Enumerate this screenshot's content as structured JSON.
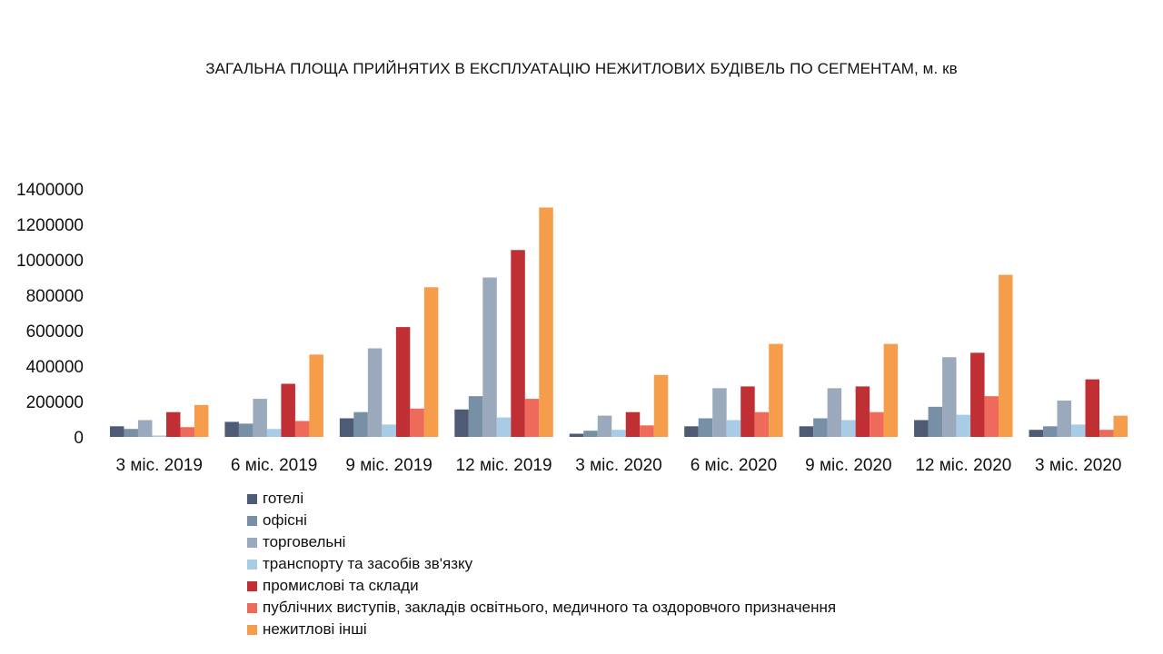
{
  "chart_data": {
    "type": "bar",
    "title": "ЗАГАЛЬНА ПЛОЩА ПРИЙНЯТИХ В ЕКСПЛУАТАЦІЮ НЕЖИТЛОВИХ БУДІВЕЛЬ ПО СЕГМЕНТАМ, м. кв",
    "categories": [
      "3 міс. 2019",
      "6 міс. 2019",
      "9 міс. 2019",
      "12 міс. 2019",
      "3 міс. 2020",
      "6 міс. 2020",
      "9 міс. 2020",
      "12 міс. 2020",
      "3 міс. 2020"
    ],
    "ylim": [
      0,
      1400000
    ],
    "yticks": [
      0,
      200000,
      400000,
      600000,
      800000,
      1000000,
      1200000,
      1400000
    ],
    "grid": false,
    "legend_position": "bottom",
    "series": [
      {
        "name": "готелі",
        "color": "#4d5b74",
        "values": [
          60000,
          85000,
          105000,
          155000,
          18000,
          60000,
          60000,
          95000,
          40000
        ]
      },
      {
        "name": "офісні",
        "color": "#7790a6",
        "values": [
          45000,
          75000,
          140000,
          230000,
          35000,
          105000,
          105000,
          170000,
          60000
        ]
      },
      {
        "name": "торговельні",
        "color": "#9ba9bd",
        "values": [
          95000,
          215000,
          500000,
          900000,
          120000,
          275000,
          275000,
          450000,
          205000
        ]
      },
      {
        "name": "транспорту та засобів зв'язку",
        "color": "#a9cce6",
        "values": [
          8000,
          45000,
          70000,
          110000,
          40000,
          95000,
          95000,
          125000,
          70000
        ]
      },
      {
        "name": "промислові та склади",
        "color": "#bf2f34",
        "values": [
          140000,
          300000,
          620000,
          1055000,
          140000,
          285000,
          285000,
          475000,
          325000
        ]
      },
      {
        "name": "публічних виступів, закладів освітнього, медичного та оздоровчого призначення",
        "color": "#ee6b5c",
        "values": [
          55000,
          90000,
          160000,
          215000,
          65000,
          140000,
          140000,
          230000,
          40000
        ]
      },
      {
        "name": "нежитлові інші",
        "color": "#f59d4b",
        "values": [
          180000,
          465000,
          845000,
          1295000,
          350000,
          525000,
          525000,
          915000,
          120000
        ]
      }
    ]
  }
}
